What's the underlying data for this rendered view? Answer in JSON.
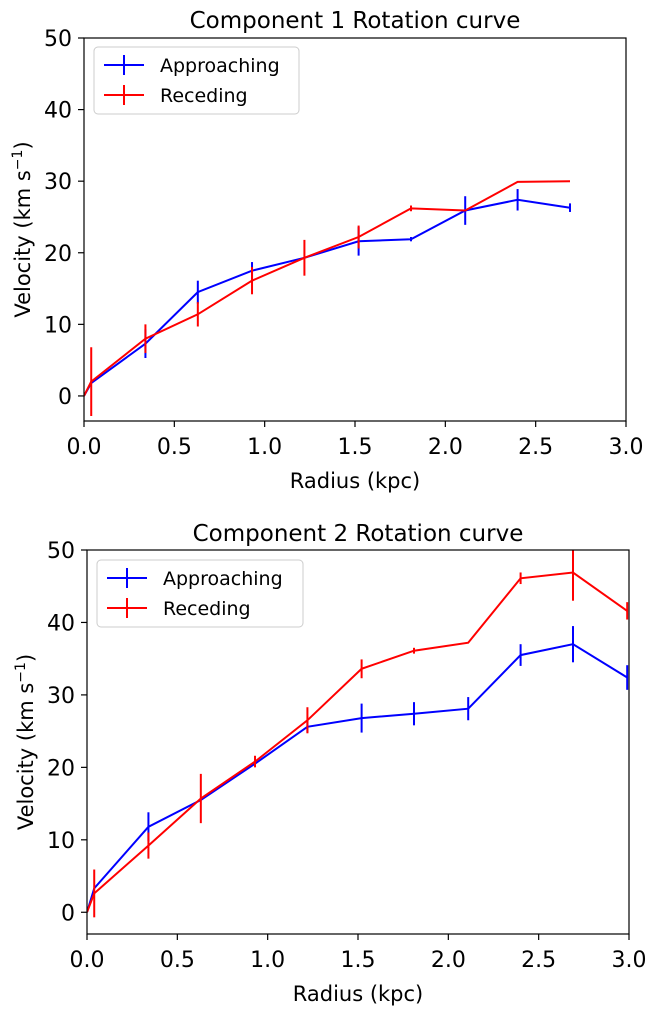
{
  "chart_data": [
    {
      "type": "line",
      "title": "Component 1 Rotation curve",
      "xlabel": "Radius (kpc)",
      "ylabel_main": "Velocity (km s",
      "ylabel_sup": "−1",
      "ylabel_close": ")",
      "xlim": [
        0.0,
        3.0
      ],
      "ylim": [
        -3.5,
        50
      ],
      "xticks": [
        0.0,
        0.5,
        1.0,
        1.5,
        2.0,
        2.5,
        3.0
      ],
      "xtick_labels": [
        "0.0",
        "0.5",
        "1.0",
        "1.5",
        "2.0",
        "2.5",
        "3.0"
      ],
      "yticks": [
        0,
        10,
        20,
        30,
        40,
        50
      ],
      "ytick_labels": [
        "0",
        "10",
        "20",
        "30",
        "40",
        "50"
      ],
      "legend_position": "top-left",
      "series": [
        {
          "name": "Approaching",
          "color": "#0000ff",
          "x": [
            0.0,
            0.04,
            0.34,
            0.63,
            0.93,
            1.22,
            1.52,
            1.81,
            2.11,
            2.4,
            2.69
          ],
          "y": [
            0.0,
            1.8,
            7.3,
            14.5,
            17.5,
            19.3,
            21.6,
            21.9,
            25.9,
            27.4,
            26.3
          ],
          "err": [
            0,
            0,
            2.0,
            1.6,
            1.2,
            0,
            2.0,
            0.3,
            2.0,
            1.5,
            0.6
          ]
        },
        {
          "name": "Receding",
          "color": "#ff0000",
          "x": [
            0.0,
            0.04,
            0.34,
            0.63,
            0.93,
            1.22,
            1.52,
            1.81,
            2.11,
            2.4,
            2.69
          ],
          "y": [
            0.0,
            2.0,
            8.0,
            11.4,
            16.1,
            19.3,
            22.2,
            26.2,
            25.9,
            29.9,
            30.0
          ],
          "err": [
            0,
            4.8,
            2.0,
            1.7,
            1.9,
            2.5,
            1.6,
            0.4,
            0,
            0,
            0
          ]
        }
      ]
    },
    {
      "type": "line",
      "title": "Component 2 Rotation curve",
      "xlabel": "Radius (kpc)",
      "ylabel_main": "Velocity (km s",
      "ylabel_sup": "−1",
      "ylabel_close": ")",
      "xlim": [
        0.0,
        3.0
      ],
      "ylim": [
        -3.0,
        50
      ],
      "xticks": [
        0.0,
        0.5,
        1.0,
        1.5,
        2.0,
        2.5,
        3.0
      ],
      "xtick_labels": [
        "0.0",
        "0.5",
        "1.0",
        "1.5",
        "2.0",
        "2.5",
        "3.0"
      ],
      "yticks": [
        0,
        10,
        20,
        30,
        40,
        50
      ],
      "ytick_labels": [
        "0",
        "10",
        "20",
        "30",
        "40",
        "50"
      ],
      "legend_position": "top-left",
      "series": [
        {
          "name": "Approaching",
          "color": "#0000ff",
          "x": [
            0.0,
            0.04,
            0.34,
            0.63,
            0.93,
            1.22,
            1.52,
            1.81,
            2.11,
            2.4,
            2.69,
            2.99
          ],
          "y": [
            0.0,
            3.3,
            11.8,
            15.5,
            20.5,
            25.6,
            26.8,
            27.4,
            28.1,
            35.5,
            37.0,
            32.4
          ],
          "err": [
            0,
            0,
            2.0,
            0,
            0,
            0.8,
            2.0,
            1.6,
            1.6,
            1.5,
            2.5,
            1.7
          ]
        },
        {
          "name": "Receding",
          "color": "#ff0000",
          "x": [
            0.0,
            0.04,
            0.34,
            0.63,
            0.93,
            1.22,
            1.52,
            1.81,
            2.11,
            2.4,
            2.69,
            2.99
          ],
          "y": [
            0.0,
            2.6,
            9.2,
            15.7,
            20.8,
            26.5,
            33.6,
            36.1,
            37.2,
            46.1,
            46.9,
            41.6
          ],
          "err": [
            0,
            3.3,
            1.8,
            3.4,
            0.8,
            1.8,
            1.3,
            0.4,
            0,
            0.8,
            3.9,
            1.2
          ]
        }
      ]
    }
  ]
}
